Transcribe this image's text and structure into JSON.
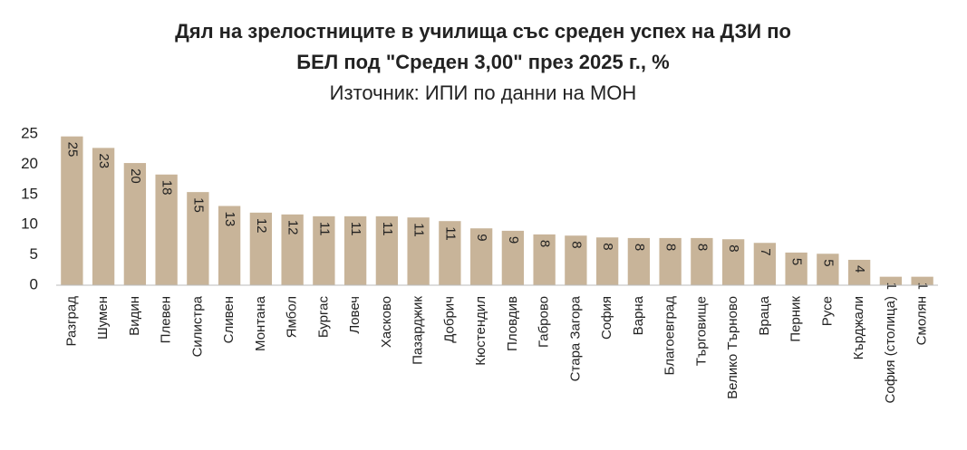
{
  "chart_data": {
    "type": "bar",
    "title": [
      "Дял на зрелостниците в училища със среден успех на ДЗИ по",
      "БЕЛ под \"Среден 3,00\" през 2025 г., %"
    ],
    "subtitle": "Източник: ИПИ по данни на МОН",
    "categories": [
      "Разград",
      "Шумен",
      "Видин",
      "Плевен",
      "Силистра",
      "Сливен",
      "Монтана",
      "Ямбол",
      "Бургас",
      "Ловеч",
      "Хасково",
      "Пазарджик",
      "Добрич",
      "Кюстендил",
      "Пловдив",
      "Габрово",
      "Стара Загора",
      "София",
      "Варна",
      "Благоевград",
      "Търговище",
      "Велико Търново",
      "Враца",
      "Перник",
      "Русе",
      "Кърджали",
      "София (столица)",
      "Смолян"
    ],
    "values": [
      24.6,
      22.7,
      20.2,
      18.3,
      15.4,
      13.1,
      12.0,
      11.7,
      11.4,
      11.4,
      11.4,
      11.2,
      10.6,
      9.4,
      9.0,
      8.4,
      8.2,
      7.9,
      7.8,
      7.8,
      7.8,
      7.6,
      7.0,
      5.4,
      5.2,
      4.2,
      1.4,
      1.4
    ],
    "value_labels": [
      "25",
      "23",
      "20",
      "18",
      "15",
      "13",
      "12",
      "12",
      "11",
      "11",
      "11",
      "11",
      "11",
      "9",
      "9",
      "8",
      "8",
      "8",
      "8",
      "8",
      "8",
      "8",
      "7",
      "5",
      "5",
      "4",
      "1",
      "1"
    ],
    "color": "#c8b499",
    "ylim": [
      0,
      25
    ],
    "yticks": [
      0,
      5,
      10,
      15,
      20,
      25
    ],
    "grid": false
  }
}
